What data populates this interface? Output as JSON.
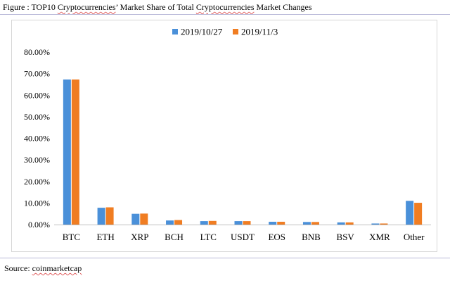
{
  "caption": {
    "prefix": "Figure : TOP10 ",
    "word1": "Cryptocurrencies",
    "mid": "’ Market Share of Total ",
    "word2": "Cryptocurrencies",
    "suffix": " Market Changes"
  },
  "source": {
    "prefix": "Source: ",
    "name": "coinmarketcap"
  },
  "chart_data": {
    "type": "bar",
    "title": "",
    "xlabel": "",
    "ylabel": "",
    "categories": [
      "BTC",
      "ETH",
      "XRP",
      "BCH",
      "LTC",
      "USDT",
      "EOS",
      "BNB",
      "BSV",
      "XMR",
      "Other"
    ],
    "series": [
      {
        "name": "2019/10/27",
        "color": "#4a90d9",
        "values": [
          67.3,
          7.8,
          5.0,
          1.9,
          1.6,
          1.6,
          1.3,
          1.2,
          1.0,
          0.5,
          11.0
        ]
      },
      {
        "name": "2019/11/3",
        "color": "#f07d22",
        "values": [
          67.3,
          8.0,
          5.1,
          2.1,
          1.7,
          1.6,
          1.3,
          1.2,
          1.0,
          0.5,
          10.1
        ]
      }
    ],
    "ylim": [
      0,
      80
    ],
    "yticks": [
      "0.00%",
      "10.00%",
      "20.00%",
      "30.00%",
      "40.00%",
      "50.00%",
      "60.00%",
      "70.00%",
      "80.00%"
    ],
    "grid": false,
    "legend": "top-center"
  }
}
